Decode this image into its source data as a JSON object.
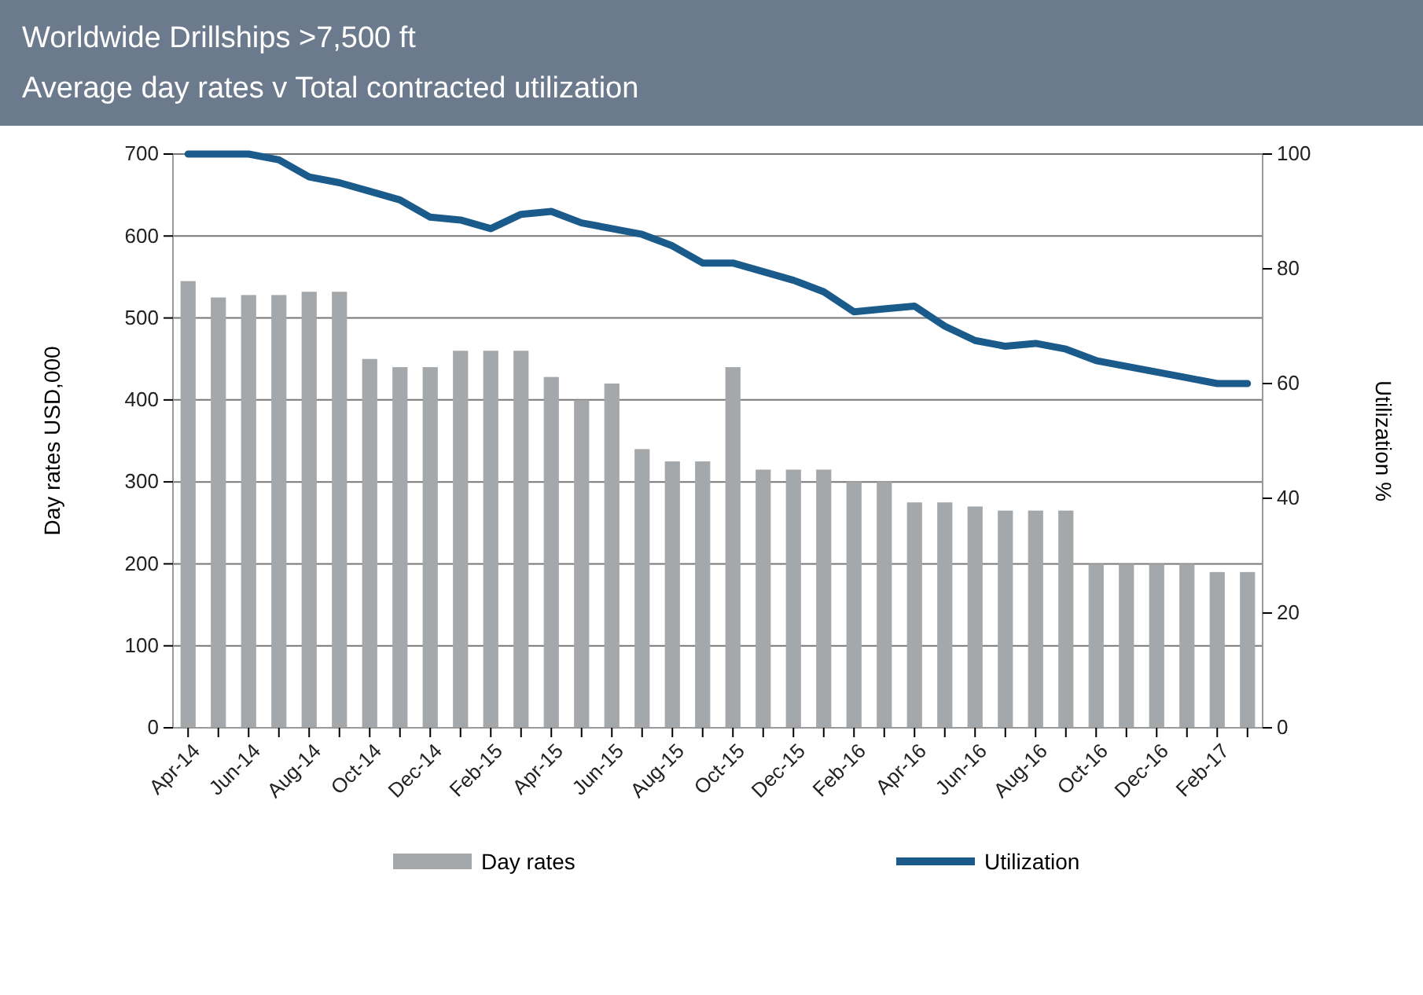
{
  "chart_data": {
    "type": "bar",
    "title": "Worldwide Drillships >7,500 ft",
    "subtitle": "Average day rates v Total contracted utilization",
    "ylabel": "Day rates USD,000",
    "y2label": "Utilization %",
    "categories": [
      "Apr-14",
      null,
      "Jun-14",
      null,
      "Aug-14",
      null,
      "Oct-14",
      null,
      "Dec-14",
      null,
      "Feb-15",
      null,
      "Apr-15",
      null,
      "Jun-15",
      null,
      "Aug-15",
      null,
      "Oct-15",
      null,
      "Dec-15",
      null,
      "Feb-16",
      null,
      "Apr-16",
      null,
      "Jun-16",
      null,
      "Aug-16",
      null,
      "Oct-16",
      null,
      "Dec-16",
      null,
      "Feb-17",
      null
    ],
    "series": [
      {
        "name": "Day rates",
        "color": "#a5a8ab",
        "values": [
          545,
          525,
          528,
          528,
          532,
          532,
          450,
          440,
          440,
          460,
          460,
          460,
          428,
          400,
          420,
          340,
          325,
          325,
          440,
          315,
          315,
          315,
          300,
          300,
          275,
          275,
          270,
          265,
          265,
          265,
          200,
          200,
          200,
          200,
          190,
          190
        ]
      },
      {
        "name": "Utilization",
        "type": "line",
        "axis": "y2",
        "color": "#1b5b8c",
        "values": [
          100,
          100,
          100,
          99,
          96,
          95,
          93.5,
          92,
          89,
          88.5,
          87,
          89.5,
          90,
          88,
          87,
          86,
          84,
          81,
          81,
          79.5,
          78,
          76,
          72.5,
          73,
          73.5,
          70,
          67.5,
          66.5,
          67,
          66,
          64,
          63,
          62,
          61,
          60,
          60
        ]
      }
    ],
    "ylim": [
      0,
      700
    ],
    "yticks": [
      0,
      100,
      200,
      300,
      400,
      500,
      600,
      700
    ],
    "y2lim": [
      0,
      100
    ],
    "y2ticks": [
      0,
      20,
      40,
      60,
      80,
      100
    ],
    "grid": "y",
    "legend": "bottom",
    "marker": "none",
    "line_style": "solid"
  }
}
